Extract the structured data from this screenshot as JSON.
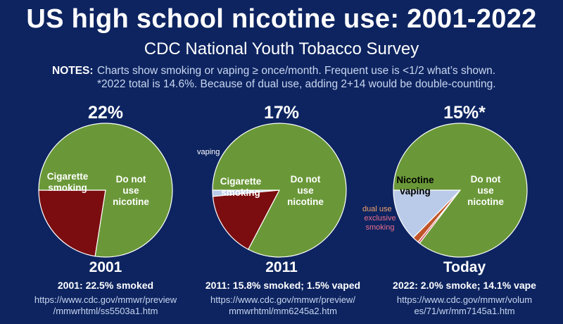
{
  "title": "US high school nicotine use:  2001-2022",
  "subtitle": "CDC National Youth Tobacco Survey",
  "notes": {
    "label": "NOTES:",
    "line1": "Charts show smoking or vaping ≥ once/month.  Frequent use is <1/2 what’s shown.",
    "line2": "*2022 total is 14.6%.  Because of dual use, adding 2+14 would be double-counting."
  },
  "colors": {
    "background": "#0d2460",
    "no_nicotine": "#6a9838",
    "smoking": "#7b0d10",
    "vaping": "#b9cbe8",
    "dual_use": "#c0552a",
    "exclusive_smoking": "#d24a5e",
    "slice_border": "#ffffff"
  },
  "panels": [
    {
      "total_label": "22%",
      "year_label": "2001",
      "stat": "2001:  22.5% smoked",
      "source_line1": "https://www.cdc.gov/mmwr/preview",
      "source_line2": "/mmwrhtml/ss5503a1.htm",
      "labels": {
        "smoking": [
          "Cigarette",
          "smoking"
        ],
        "no_use": [
          "Do not",
          "use",
          "nicotine"
        ]
      }
    },
    {
      "total_label": "17%",
      "year_label": "2011",
      "stat": "2011:  15.8% smoked; 1.5% vaped",
      "source_line1": "https://www.cdc.gov/mmwr/preview/",
      "source_line2": "mmwrhtml/mm6245a2.htm",
      "labels": {
        "vaping": "vaping",
        "smoking": [
          "Cigarette",
          "smoking"
        ],
        "no_use": [
          "Do not",
          "use",
          "nicotine"
        ]
      }
    },
    {
      "total_label": "15%*",
      "year_label": "Today",
      "stat": "2022:  2.0% smoke; 14.1% vape",
      "source_line1": "https://www.cdc.gov/mmwr/volum",
      "source_line2": "es/71/wr/mm7145a1.htm",
      "labels": {
        "vaping": [
          "Nicotine",
          "vaping"
        ],
        "dual_use": "dual use",
        "exclusive_smoking": [
          "exclusive",
          "smoking"
        ],
        "no_use": [
          "Do not",
          "use",
          "nicotine"
        ]
      }
    }
  ],
  "chart_data": [
    {
      "type": "pie",
      "title": "22%",
      "xlabel": "2001",
      "slices": [
        {
          "label": "Cigarette smoking",
          "value": 22.5,
          "color": "#7b0d10"
        },
        {
          "label": "Do not use nicotine",
          "value": 77.5,
          "color": "#6a9838"
        }
      ]
    },
    {
      "type": "pie",
      "title": "17%",
      "xlabel": "2011",
      "slices": [
        {
          "label": "vaping",
          "value": 1.5,
          "color": "#b9cbe8"
        },
        {
          "label": "Cigarette smoking",
          "value": 15.8,
          "color": "#7b0d10"
        },
        {
          "label": "Do not use nicotine",
          "value": 82.7,
          "color": "#6a9838"
        }
      ]
    },
    {
      "type": "pie",
      "title": "15%*",
      "xlabel": "Today",
      "slices": [
        {
          "label": "Nicotine vaping",
          "value": 12.6,
          "color": "#b9cbe8"
        },
        {
          "label": "dual use",
          "value": 1.5,
          "color": "#c0552a"
        },
        {
          "label": "exclusive smoking",
          "value": 0.5,
          "color": "#d24a5e"
        },
        {
          "label": "Do not use nicotine",
          "value": 85.4,
          "color": "#6a9838"
        }
      ]
    }
  ]
}
